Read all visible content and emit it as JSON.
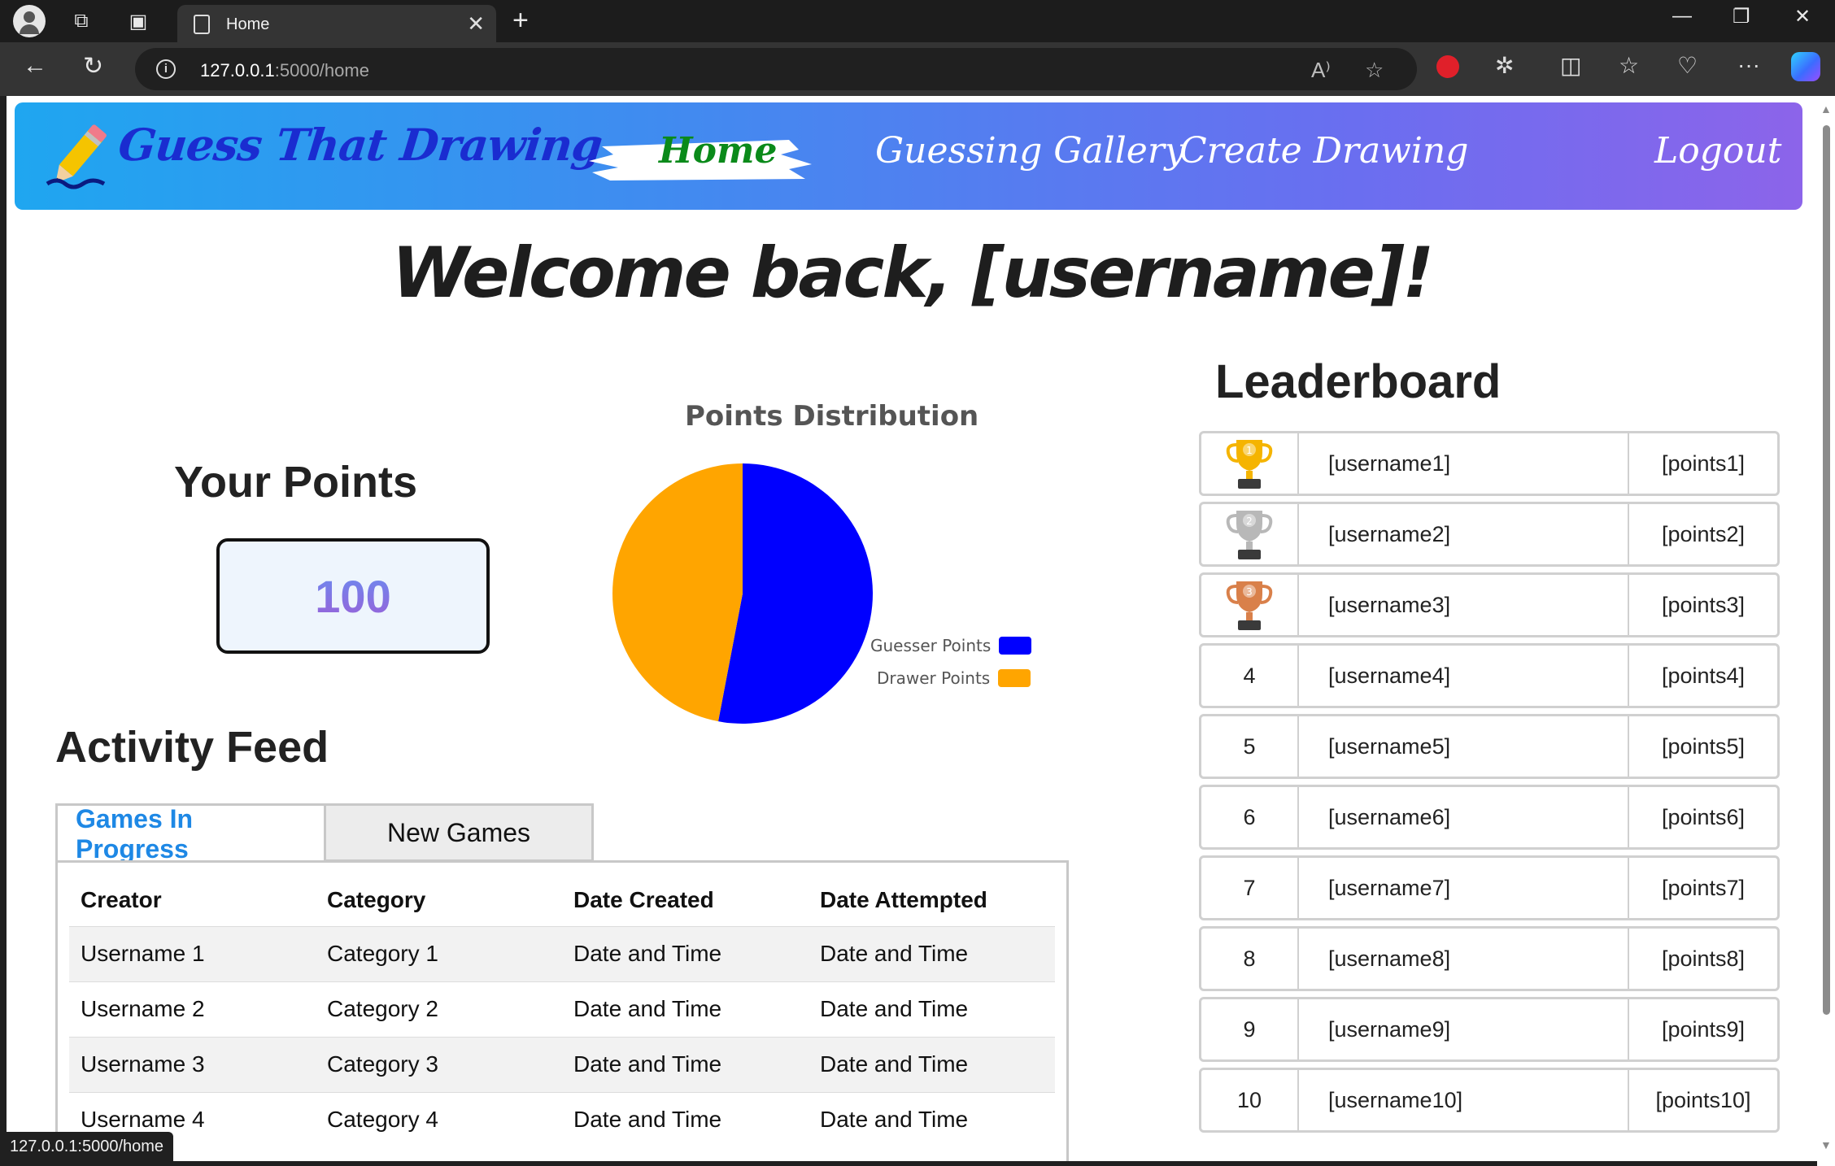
{
  "browser": {
    "tab_title": "Home",
    "url_host": "127.0.0.1",
    "url_path": ":5000/home",
    "status_url": "127.0.0.1:5000/home"
  },
  "header": {
    "logo_text": "Guess That Drawing",
    "nav": [
      "Home",
      "Guessing Gallery",
      "Create Drawing"
    ],
    "logout": "Logout"
  },
  "welcome": "Welcome back, [username]!",
  "points": {
    "title": "Your Points",
    "value": "100"
  },
  "chart_data": {
    "type": "pie",
    "title": "Points Distribution",
    "categories": [
      "Guesser Points",
      "Drawer Points"
    ],
    "values": [
      53,
      47
    ],
    "colors": [
      "#0000ff",
      "#ffa500"
    ],
    "legend": "right"
  },
  "activity": {
    "title": "Activity Feed",
    "tabs": [
      "Games In Progress",
      "New Games"
    ],
    "columns": [
      "Creator",
      "Category",
      "Date Created",
      "Date Attempted"
    ],
    "rows": [
      [
        "Username 1",
        "Category 1",
        "Date and Time",
        "Date and Time"
      ],
      [
        "Username 2",
        "Category 2",
        "Date and Time",
        "Date and Time"
      ],
      [
        "Username 3",
        "Category 3",
        "Date and Time",
        "Date and Time"
      ],
      [
        "Username 4",
        "Category 4",
        "Date and Time",
        "Date and Time"
      ]
    ]
  },
  "leaderboard": {
    "title": "Leaderboard",
    "rows": [
      {
        "rank": "1",
        "name": "[username1]",
        "points": "[points1]",
        "trophy": "gold-trophy-icon",
        "color": "#f5b400"
      },
      {
        "rank": "2",
        "name": "[username2]",
        "points": "[points2]",
        "trophy": "silver-trophy-icon",
        "color": "#b8b8b8"
      },
      {
        "rank": "3",
        "name": "[username3]",
        "points": "[points3]",
        "trophy": "bronze-trophy-icon",
        "color": "#d9804a"
      },
      {
        "rank": "4",
        "name": "[username4]",
        "points": "[points4]"
      },
      {
        "rank": "5",
        "name": "[username5]",
        "points": "[points5]"
      },
      {
        "rank": "6",
        "name": "[username6]",
        "points": "[points6]"
      },
      {
        "rank": "7",
        "name": "[username7]",
        "points": "[points7]"
      },
      {
        "rank": "8",
        "name": "[username8]",
        "points": "[points8]"
      },
      {
        "rank": "9",
        "name": "[username9]",
        "points": "[points9]"
      },
      {
        "rank": "10",
        "name": "[username10]",
        "points": "[points10]"
      }
    ]
  }
}
